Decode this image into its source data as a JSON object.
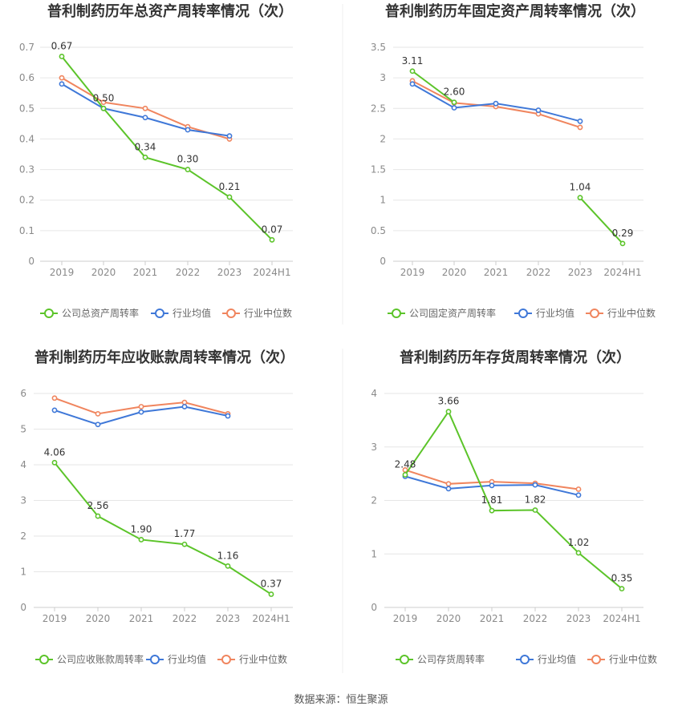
{
  "colors": {
    "company": "#5cc42a",
    "average": "#3f78d8",
    "median": "#f0855e",
    "grid": "#e6e6e6",
    "axis": "#cccccc"
  },
  "legend_labels_common": {
    "average": "行业均值",
    "median": "行业中位数"
  },
  "source": "数据来源：恒生聚源",
  "chart_data": [
    {
      "type": "line",
      "title": "普利制药历年总资产周转率情况（次）",
      "categories": [
        "2019",
        "2020",
        "2021",
        "2022",
        "2023",
        "2024H1"
      ],
      "yticks": [
        "0",
        "0.1",
        "0.2",
        "0.3",
        "0.4",
        "0.5",
        "0.6",
        "0.7"
      ],
      "ylim": [
        0,
        0.7
      ],
      "series": [
        {
          "name": "公司总资产周转率",
          "key": "company",
          "values": [
            0.67,
            0.5,
            0.34,
            0.3,
            0.21,
            0.07
          ],
          "labels": [
            "0.67",
            "0.50",
            "0.34",
            "0.30",
            "0.21",
            "0.07"
          ]
        },
        {
          "name": "行业均值",
          "key": "average",
          "values": [
            0.58,
            0.5,
            0.47,
            0.43,
            0.41,
            null
          ]
        },
        {
          "name": "行业中位数",
          "key": "median",
          "values": [
            0.6,
            0.52,
            0.5,
            0.44,
            0.4,
            null
          ]
        }
      ]
    },
    {
      "type": "line",
      "title": "普利制药历年固定资产周转率情况（次）",
      "categories": [
        "2019",
        "2020",
        "2021",
        "2022",
        "2023",
        "2024H1"
      ],
      "yticks": [
        "0",
        "0.5",
        "1",
        "1.5",
        "2",
        "2.5",
        "3",
        "3.5"
      ],
      "ylim": [
        0,
        3.5
      ],
      "series": [
        {
          "name": "公司固定资产周转率",
          "key": "company",
          "values": [
            3.11,
            2.6,
            null,
            null,
            1.04,
            0.29
          ],
          "labels": [
            "3.11",
            "2.60",
            "",
            "",
            "1.04",
            "0.29"
          ]
        },
        {
          "name": "行业均值",
          "key": "average",
          "values": [
            2.9,
            2.51,
            2.58,
            2.47,
            2.29,
            null
          ]
        },
        {
          "name": "行业中位数",
          "key": "median",
          "values": [
            2.95,
            2.59,
            2.53,
            2.41,
            2.19,
            null
          ]
        }
      ]
    },
    {
      "type": "line",
      "title": "普利制药历年应收账款周转率情况（次）",
      "categories": [
        "2019",
        "2020",
        "2021",
        "2022",
        "2023",
        "2024H1"
      ],
      "yticks": [
        "0",
        "1",
        "2",
        "3",
        "4",
        "5",
        "6"
      ],
      "ylim": [
        0,
        6
      ],
      "series": [
        {
          "name": "公司应收账款周转率",
          "key": "company",
          "values": [
            4.06,
            2.56,
            1.9,
            1.77,
            1.16,
            0.37
          ],
          "labels": [
            "4.06",
            "2.56",
            "1.90",
            "1.77",
            "1.16",
            "0.37"
          ]
        },
        {
          "name": "行业均值",
          "key": "average",
          "values": [
            5.53,
            5.13,
            5.48,
            5.63,
            5.37,
            null
          ]
        },
        {
          "name": "行业中位数",
          "key": "median",
          "values": [
            5.87,
            5.43,
            5.63,
            5.75,
            5.43,
            null
          ]
        }
      ]
    },
    {
      "type": "line",
      "title": "普利制药历年存货周转率情况（次）",
      "categories": [
        "2019",
        "2020",
        "2021",
        "2022",
        "2023",
        "2024H1"
      ],
      "yticks": [
        "0",
        "1",
        "2",
        "3",
        "4"
      ],
      "ylim": [
        0,
        4
      ],
      "series": [
        {
          "name": "公司存货周转率",
          "key": "company",
          "values": [
            2.48,
            3.66,
            1.81,
            1.82,
            1.02,
            0.35
          ],
          "labels": [
            "2.48",
            "3.66",
            "1.81",
            "1.82",
            "1.02",
            "0.35"
          ]
        },
        {
          "name": "行业均值",
          "key": "average",
          "values": [
            2.45,
            2.22,
            2.28,
            2.29,
            2.1,
            null
          ]
        },
        {
          "name": "行业中位数",
          "key": "median",
          "values": [
            2.57,
            2.31,
            2.35,
            2.32,
            2.21,
            null
          ]
        }
      ]
    }
  ]
}
